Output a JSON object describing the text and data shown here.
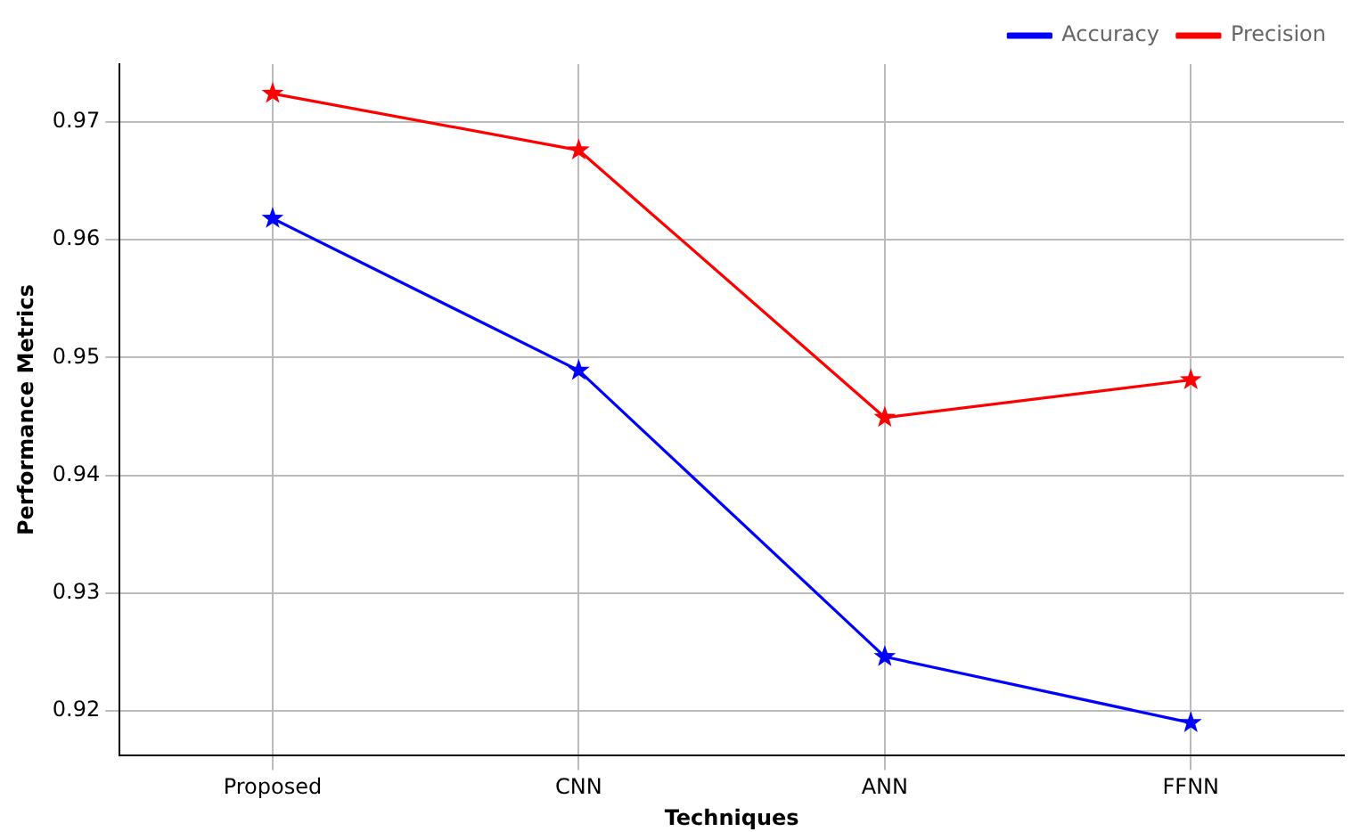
{
  "chart_data": {
    "type": "line",
    "xlabel": "Techniques",
    "ylabel": "Performance Metrics",
    "categories": [
      "Proposed",
      "CNN",
      "ANN",
      "FFNN"
    ],
    "series": [
      {
        "name": "Accuracy",
        "color": "#0000ff",
        "values": [
          0.9618,
          0.9489,
          0.9246,
          0.919
        ]
      },
      {
        "name": "Precision",
        "color": "#ff0000",
        "values": [
          0.9724,
          0.9676,
          0.9449,
          0.9481
        ]
      }
    ],
    "ylim": [
      0.9162,
      0.9749
    ],
    "yticks": [
      0.92,
      0.93,
      0.94,
      0.95,
      0.96,
      0.97
    ],
    "grid": true,
    "legend": "top right",
    "marker": "star",
    "line_style": "solid"
  }
}
